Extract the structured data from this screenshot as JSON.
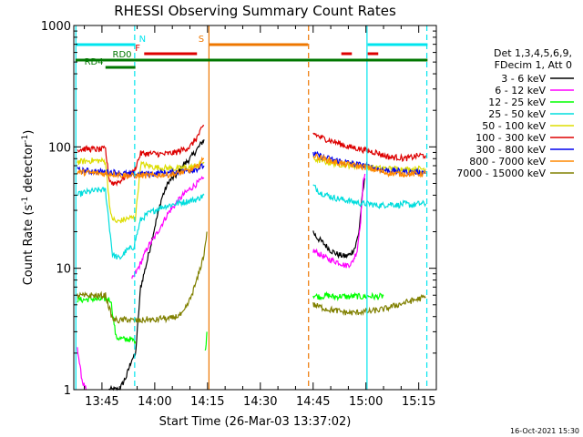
{
  "chart_data": {
    "type": "line",
    "title": "RHESSI Observing Summary Count Rates",
    "xlabel": "Start Time (26-Mar-03 13:37:02)",
    "ylabel_main": "Count Rate (s",
    "ylabel_sup1": "-1",
    "ylabel_mid": " detector",
    "ylabel_sup2": "-1",
    "ylabel_end": ")",
    "yscale": "log",
    "ylim": [
      1,
      1000
    ],
    "xlim_minutes": [
      37.0,
      140.0
    ],
    "x_ticks": [
      {
        "label": "13:45",
        "minute": 45
      },
      {
        "label": "14:00",
        "minute": 60
      },
      {
        "label": "14:15",
        "minute": 75
      },
      {
        "label": "14:30",
        "minute": 90
      },
      {
        "label": "14:45",
        "minute": 105
      },
      {
        "label": "15:00",
        "minute": 120
      },
      {
        "label": "15:15",
        "minute": 135
      }
    ],
    "y_ticks": [
      {
        "label": "1",
        "value": 1
      },
      {
        "label": "10",
        "value": 10
      },
      {
        "label": "100",
        "value": 100
      },
      {
        "label": "1000",
        "value": 1000
      }
    ],
    "legend_header": [
      "Det 1,3,4,5,6,9,",
      "FDecim 1, Att 0"
    ],
    "timestamp": "16-Oct-2021 15:30",
    "flags": [
      {
        "label": "N",
        "color": "#00e5ee",
        "row": 1,
        "segments": [
          [
            37.5,
            54.5
          ],
          [
            120.5,
            137.5
          ]
        ]
      },
      {
        "label": "F",
        "color": "#dd0000",
        "row": 2,
        "segments": [
          [
            57,
            72
          ],
          [
            113,
            116
          ],
          [
            120.5,
            123.5
          ]
        ]
      },
      {
        "label": "S",
        "color": "#ee7700",
        "row": 1,
        "segments": [
          [
            75.5,
            103.5
          ]
        ]
      },
      {
        "label": "RD0",
        "color": "#007700",
        "row": 3,
        "segments": [
          [
            37.5,
            137.5
          ]
        ]
      },
      {
        "label": "RD4",
        "color": "#007700",
        "row": 4,
        "segments": [
          [
            46,
            54.5
          ]
        ]
      }
    ],
    "vlines": [
      {
        "minute": 37.6,
        "color": "#00e5ee",
        "style": "solid"
      },
      {
        "minute": 54.3,
        "color": "#00e5ee",
        "style": "dashed"
      },
      {
        "minute": 120.3,
        "color": "#00e5ee",
        "style": "solid"
      },
      {
        "minute": 137.3,
        "color": "#00e5ee",
        "style": "dashed"
      },
      {
        "minute": 75.4,
        "color": "#ee7700",
        "style": "solid"
      },
      {
        "minute": 103.7,
        "color": "#ee7700",
        "style": "dashed"
      }
    ],
    "series": [
      {
        "name": "3 - 6 keV",
        "color": "#000000",
        "segments": [
          {
            "x": [
              47,
              50,
              52,
              53.5,
              54.5,
              56,
              58,
              60,
              62,
              64,
              66,
              68,
              70,
              72,
              74
            ],
            "y": [
              1.0,
              1.0,
              1.3,
              1.8,
              1.9,
              7,
              12,
              22,
              38,
              52,
              58,
              70,
              80,
              95,
              115
            ]
          },
          {
            "x": [
              105,
              106,
              108,
              110,
              112,
              114,
              115.5,
              117,
              118,
              119,
              119.7
            ],
            "y": [
              20,
              18,
              16,
              14,
              13,
              12.5,
              13,
              15,
              20,
              40,
              55
            ]
          }
        ]
      },
      {
        "name": "6 - 12 keV",
        "color": "#ff00ff",
        "segments": [
          {
            "x": [
              38,
              38.8,
              39.5,
              40.5
            ],
            "y": [
              2.3,
              1.5,
              1.15,
              1.0
            ]
          },
          {
            "x": [
              53.5,
              54.5,
              56,
              58,
              60,
              62,
              64,
              66,
              68,
              70,
              72,
              74
            ],
            "y": [
              8,
              9,
              11,
              15,
              18,
              23,
              29,
              34,
              40,
              45,
              50,
              55
            ]
          },
          {
            "x": [
              105,
              107,
              109,
              111,
              113,
              114,
              116,
              117.5,
              118.5,
              119.2,
              119.7
            ],
            "y": [
              14,
              13,
              12,
              11.5,
              11,
              10.5,
              11,
              14,
              25,
              50,
              60
            ]
          }
        ]
      },
      {
        "name": "12 - 25 keV",
        "color": "#00ff00",
        "segments": [
          {
            "x": [
              38,
              40,
              42,
              44,
              46,
              47.5,
              49,
              51,
              53,
              54.5
            ],
            "y": [
              5.5,
              5.5,
              5.6,
              5.5,
              5.6,
              5.5,
              2.7,
              2.6,
              2.6,
              2.5
            ]
          },
          {
            "x": [
              74.3,
              74.6,
              74.8
            ],
            "y": [
              2.0,
              2.5,
              3.0
            ]
          },
          {
            "x": [
              105,
              107,
              109,
              111,
              113,
              115,
              117,
              119,
              121,
              123,
              125
            ],
            "y": [
              6.0,
              5.8,
              6.0,
              5.8,
              5.9,
              5.8,
              5.9,
              5.8,
              5.9,
              5.8,
              5.9
            ]
          }
        ]
      },
      {
        "name": "25 - 50 keV",
        "color": "#00dddd",
        "segments": [
          {
            "x": [
              38,
              40,
              42,
              44,
              46,
              48,
              50,
              52,
              54,
              56,
              58,
              60,
              62,
              64,
              66,
              68,
              70,
              72,
              74
            ],
            "y": [
              40,
              42,
              43,
              44,
              44,
              13,
              12,
              14,
              15,
              25,
              28,
              30,
              32,
              33,
              34,
              35,
              36,
              37,
              40
            ]
          },
          {
            "x": [
              105,
              107,
              109,
              111,
              113,
              115,
              117,
              119,
              121,
              123,
              125,
              127,
              129,
              131,
              133,
              135,
              137
            ],
            "y": [
              48,
              42,
              40,
              38,
              37,
              36,
              35,
              34,
              34,
              33,
              33,
              34,
              33,
              34,
              33,
              34,
              34
            ]
          }
        ]
      },
      {
        "name": "50 - 100 keV",
        "color": "#dddd00",
        "segments": [
          {
            "x": [
              38,
              40,
              42,
              44,
              46,
              47.5,
              49,
              51,
              53,
              54.5,
              56,
              58,
              60,
              62,
              64,
              66,
              68,
              70,
              72,
              74
            ],
            "y": [
              75,
              76,
              77,
              77,
              76,
              27,
              24,
              25,
              26,
              26,
              72,
              70,
              68,
              67,
              67,
              66,
              67,
              68,
              70,
              75
            ]
          },
          {
            "x": [
              105,
              108,
              111,
              114,
              117,
              120,
              123,
              126,
              129,
              132,
              135,
              137
            ],
            "y": [
              80,
              76,
              73,
              71,
              70,
              68,
              67,
              66,
              66,
              65,
              66,
              66
            ]
          }
        ]
      },
      {
        "name": "100 - 300 keV",
        "color": "#dd0000",
        "segments": [
          {
            "x": [
              38,
              40,
              42,
              44,
              46,
              47,
              48,
              50,
              52,
              54,
              56,
              58,
              60,
              62,
              64,
              66,
              68,
              70,
              72,
              74
            ],
            "y": [
              95,
              96,
              96,
              95,
              96,
              55,
              50,
              52,
              58,
              62,
              88,
              88,
              88,
              87,
              88,
              90,
              95,
              100,
              120,
              150
            ]
          },
          {
            "x": [
              105,
              107,
              109,
              111,
              113,
              115,
              117,
              119,
              121,
              123,
              125,
              127,
              129,
              131,
              133,
              135,
              137
            ],
            "y": [
              130,
              120,
              115,
              110,
              105,
              100,
              98,
              95,
              92,
              90,
              85,
              82,
              82,
              80,
              82,
              85,
              85
            ]
          }
        ]
      },
      {
        "name": "300 - 800 keV",
        "color": "#0000ee",
        "segments": [
          {
            "x": [
              38,
              42,
              46,
              48,
              50,
              52,
              54,
              56,
              58,
              60,
              62,
              64,
              66,
              68,
              70,
              72,
              74
            ],
            "y": [
              64,
              63,
              62,
              62,
              61,
              60,
              59,
              60,
              60,
              60,
              61,
              61,
              62,
              63,
              64,
              66,
              70
            ]
          },
          {
            "x": [
              105,
              108,
              111,
              114,
              117,
              120,
              123,
              126,
              129,
              132,
              135,
              137
            ],
            "y": [
              88,
              82,
              78,
              75,
              72,
              70,
              66,
              64,
              63,
              62,
              62,
              62
            ]
          }
        ]
      },
      {
        "name": "800 - 7000 keV",
        "color": "#ff8800",
        "segments": [
          {
            "x": [
              38,
              42,
              46,
              48,
              50,
              52,
              54,
              56,
              58,
              60,
              62,
              64,
              66,
              68,
              70,
              72,
              74
            ],
            "y": [
              62,
              61,
              60,
              60,
              59,
              58,
              58,
              58,
              58,
              58,
              59,
              59,
              60,
              62,
              64,
              68,
              80
            ]
          },
          {
            "x": [
              105,
              108,
              111,
              114,
              117,
              120,
              123,
              126,
              129,
              132,
              135,
              137
            ],
            "y": [
              85,
              80,
              75,
              72,
              70,
              68,
              64,
              61,
              60,
              60,
              60,
              60
            ]
          }
        ]
      },
      {
        "name": "7000 - 15000 keV",
        "color": "#808000",
        "segments": [
          {
            "x": [
              38,
              40,
              42,
              44,
              46,
              48,
              50,
              52,
              54,
              56,
              58,
              60,
              62,
              64,
              66,
              68,
              70,
              72,
              74,
              74.8
            ],
            "y": [
              6.0,
              5.9,
              6.0,
              5.9,
              6.0,
              3.8,
              3.7,
              3.8,
              3.7,
              3.7,
              3.8,
              3.7,
              3.9,
              3.8,
              4.0,
              4.2,
              5.5,
              8.0,
              13,
              20
            ]
          },
          {
            "x": [
              105,
              107,
              109,
              111,
              113,
              115,
              117,
              119,
              121,
              123,
              125,
              127,
              129,
              131,
              133,
              135,
              137
            ],
            "y": [
              5.0,
              4.8,
              4.6,
              4.5,
              4.4,
              4.3,
              4.3,
              4.4,
              4.4,
              4.5,
              4.6,
              4.8,
              5.0,
              5.2,
              5.4,
              5.6,
              5.8
            ]
          }
        ]
      }
    ]
  }
}
